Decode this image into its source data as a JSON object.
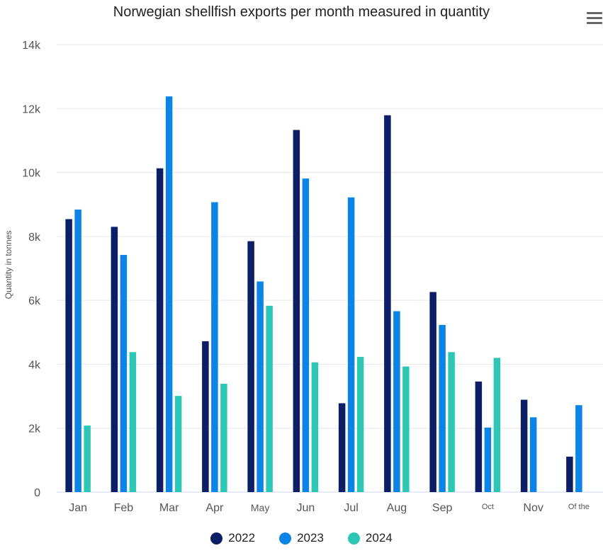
{
  "chart_data": {
    "type": "bar",
    "title": "Norwegian shellfish exports per month measured in quantity",
    "ylabel": "Quantity in tonnes",
    "xlabel": "",
    "categories": [
      "Jan",
      "Feb",
      "Mar",
      "Apr",
      "May",
      "Jun",
      "Jul",
      "Aug",
      "Sep",
      "Oct",
      "Nov",
      "Of the"
    ],
    "ylim": [
      0,
      14000
    ],
    "yticks": [
      0,
      2000,
      4000,
      6000,
      8000,
      10000,
      12000,
      14000
    ],
    "ytick_labels": [
      "0",
      "2k",
      "4k",
      "6k",
      "8k",
      "10k",
      "12k",
      "14k"
    ],
    "grid": true,
    "legend_position": "bottom-center",
    "series": [
      {
        "name": "2022",
        "color": "#0c1f66",
        "values": [
          8540,
          8300,
          10130,
          4720,
          7850,
          11330,
          2780,
          11790,
          6260,
          3460,
          2890,
          1110
        ]
      },
      {
        "name": "2023",
        "color": "#0b84e6",
        "values": [
          8840,
          7420,
          12380,
          9070,
          6590,
          9810,
          9220,
          5660,
          5230,
          2020,
          2340,
          2720
        ]
      },
      {
        "name": "2024",
        "color": "#2ec7b6",
        "values": [
          2080,
          4380,
          3010,
          3390,
          5830,
          4060,
          4230,
          3930,
          4380,
          4200,
          null,
          null
        ]
      }
    ]
  },
  "menu": {
    "icon": "hamburger-menu-icon"
  }
}
